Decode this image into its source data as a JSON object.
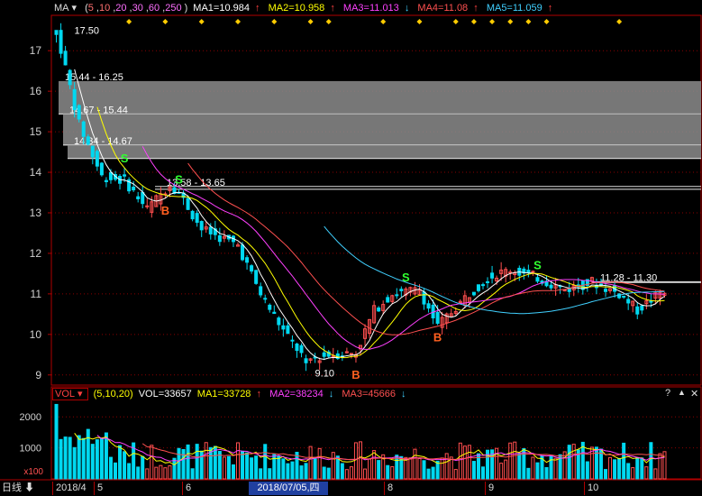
{
  "colors": {
    "bg": "#000000",
    "frame": "#b00000",
    "grid": "#8a0000",
    "axis_text": "#d0d0d0",
    "up": "#ff4f4f",
    "down": "#00d8f0",
    "ma1": "#ffffff",
    "ma2": "#ffff00",
    "ma3": "#ff40ff",
    "ma4": "#ff5050",
    "ma5": "#40d0ff",
    "zone": "#8c8c8c",
    "diamond": "#ffcc00",
    "signal_buy": "#ff6020",
    "signal_sell": "#30ff30",
    "date_box": "#2040a0"
  },
  "main_header": {
    "indicator": "MA",
    "dropdown_icon": "▾",
    "params": [
      "5",
      "10",
      "20",
      "30",
      "60",
      "250"
    ],
    "ma": [
      {
        "label": "MA1=10.984",
        "arrow": "↑",
        "color": "#ffffff"
      },
      {
        "label": "MA2=10.958",
        "arrow": "↑",
        "color": "#ffff00"
      },
      {
        "label": "MA3=11.013",
        "arrow": "↓",
        "color": "#ff40ff"
      },
      {
        "label": "MA4=11.08",
        "arrow": "↑",
        "color": "#ff5050"
      },
      {
        "label": "MA5=11.059",
        "arrow": "↑",
        "color": "#40d0ff"
      }
    ]
  },
  "vol_header": {
    "indicator": "VOL",
    "dropdown_icon": "▾",
    "params": "(5,10,20)",
    "vol": "VOL=33657",
    "ma": [
      {
        "label": "MA1=33728",
        "arrow": "↑",
        "color": "#ffff00"
      },
      {
        "label": "MA2=38234",
        "arrow": "↓",
        "color": "#ff40ff"
      },
      {
        "label": "MA3=45666",
        "arrow": "↓",
        "color": "#40d0ff"
      }
    ]
  },
  "corner_buttons": {
    "help": "?",
    "toggle": "▲",
    "close": "✕"
  },
  "price_axis": {
    "ticks": [
      "17",
      "16",
      "15",
      "14",
      "13",
      "12",
      "11",
      "10",
      "9"
    ],
    "min": 8.75,
    "max": 17.85
  },
  "vol_axis": {
    "ticks": [
      "2000",
      "1000"
    ],
    "unit": "x100",
    "min": 0,
    "max": 2500
  },
  "price_labels": {
    "high": "17.50",
    "low": "9.10"
  },
  "zones": [
    {
      "label": "15.44 - 16.25",
      "low": 15.44,
      "high": 16.25
    },
    {
      "label": "14.67 - 15.44",
      "low": 14.67,
      "high": 15.44
    },
    {
      "label": "14.34 - 14.67",
      "low": 14.34,
      "high": 14.67
    },
    {
      "label": "13.58 - 13.65",
      "low": 13.58,
      "high": 13.65
    },
    {
      "label": "11.28 - 11.30",
      "low": 11.28,
      "high": 11.3
    }
  ],
  "signals": [
    {
      "type": "S",
      "index": 15
    },
    {
      "type": "B",
      "index": 24
    },
    {
      "type": "S",
      "index": 27
    },
    {
      "type": "B",
      "index": 66
    },
    {
      "type": "S",
      "index": 77
    },
    {
      "type": "B",
      "index": 84
    },
    {
      "type": "S",
      "index": 106
    }
  ],
  "bottom_bar": {
    "period": "日线",
    "period_icon": "⬇",
    "date_labels": [
      "2018/4",
      "5",
      "6",
      "7",
      "8",
      "9",
      "10"
    ],
    "selected_date": "2018/07/05,四"
  }
}
